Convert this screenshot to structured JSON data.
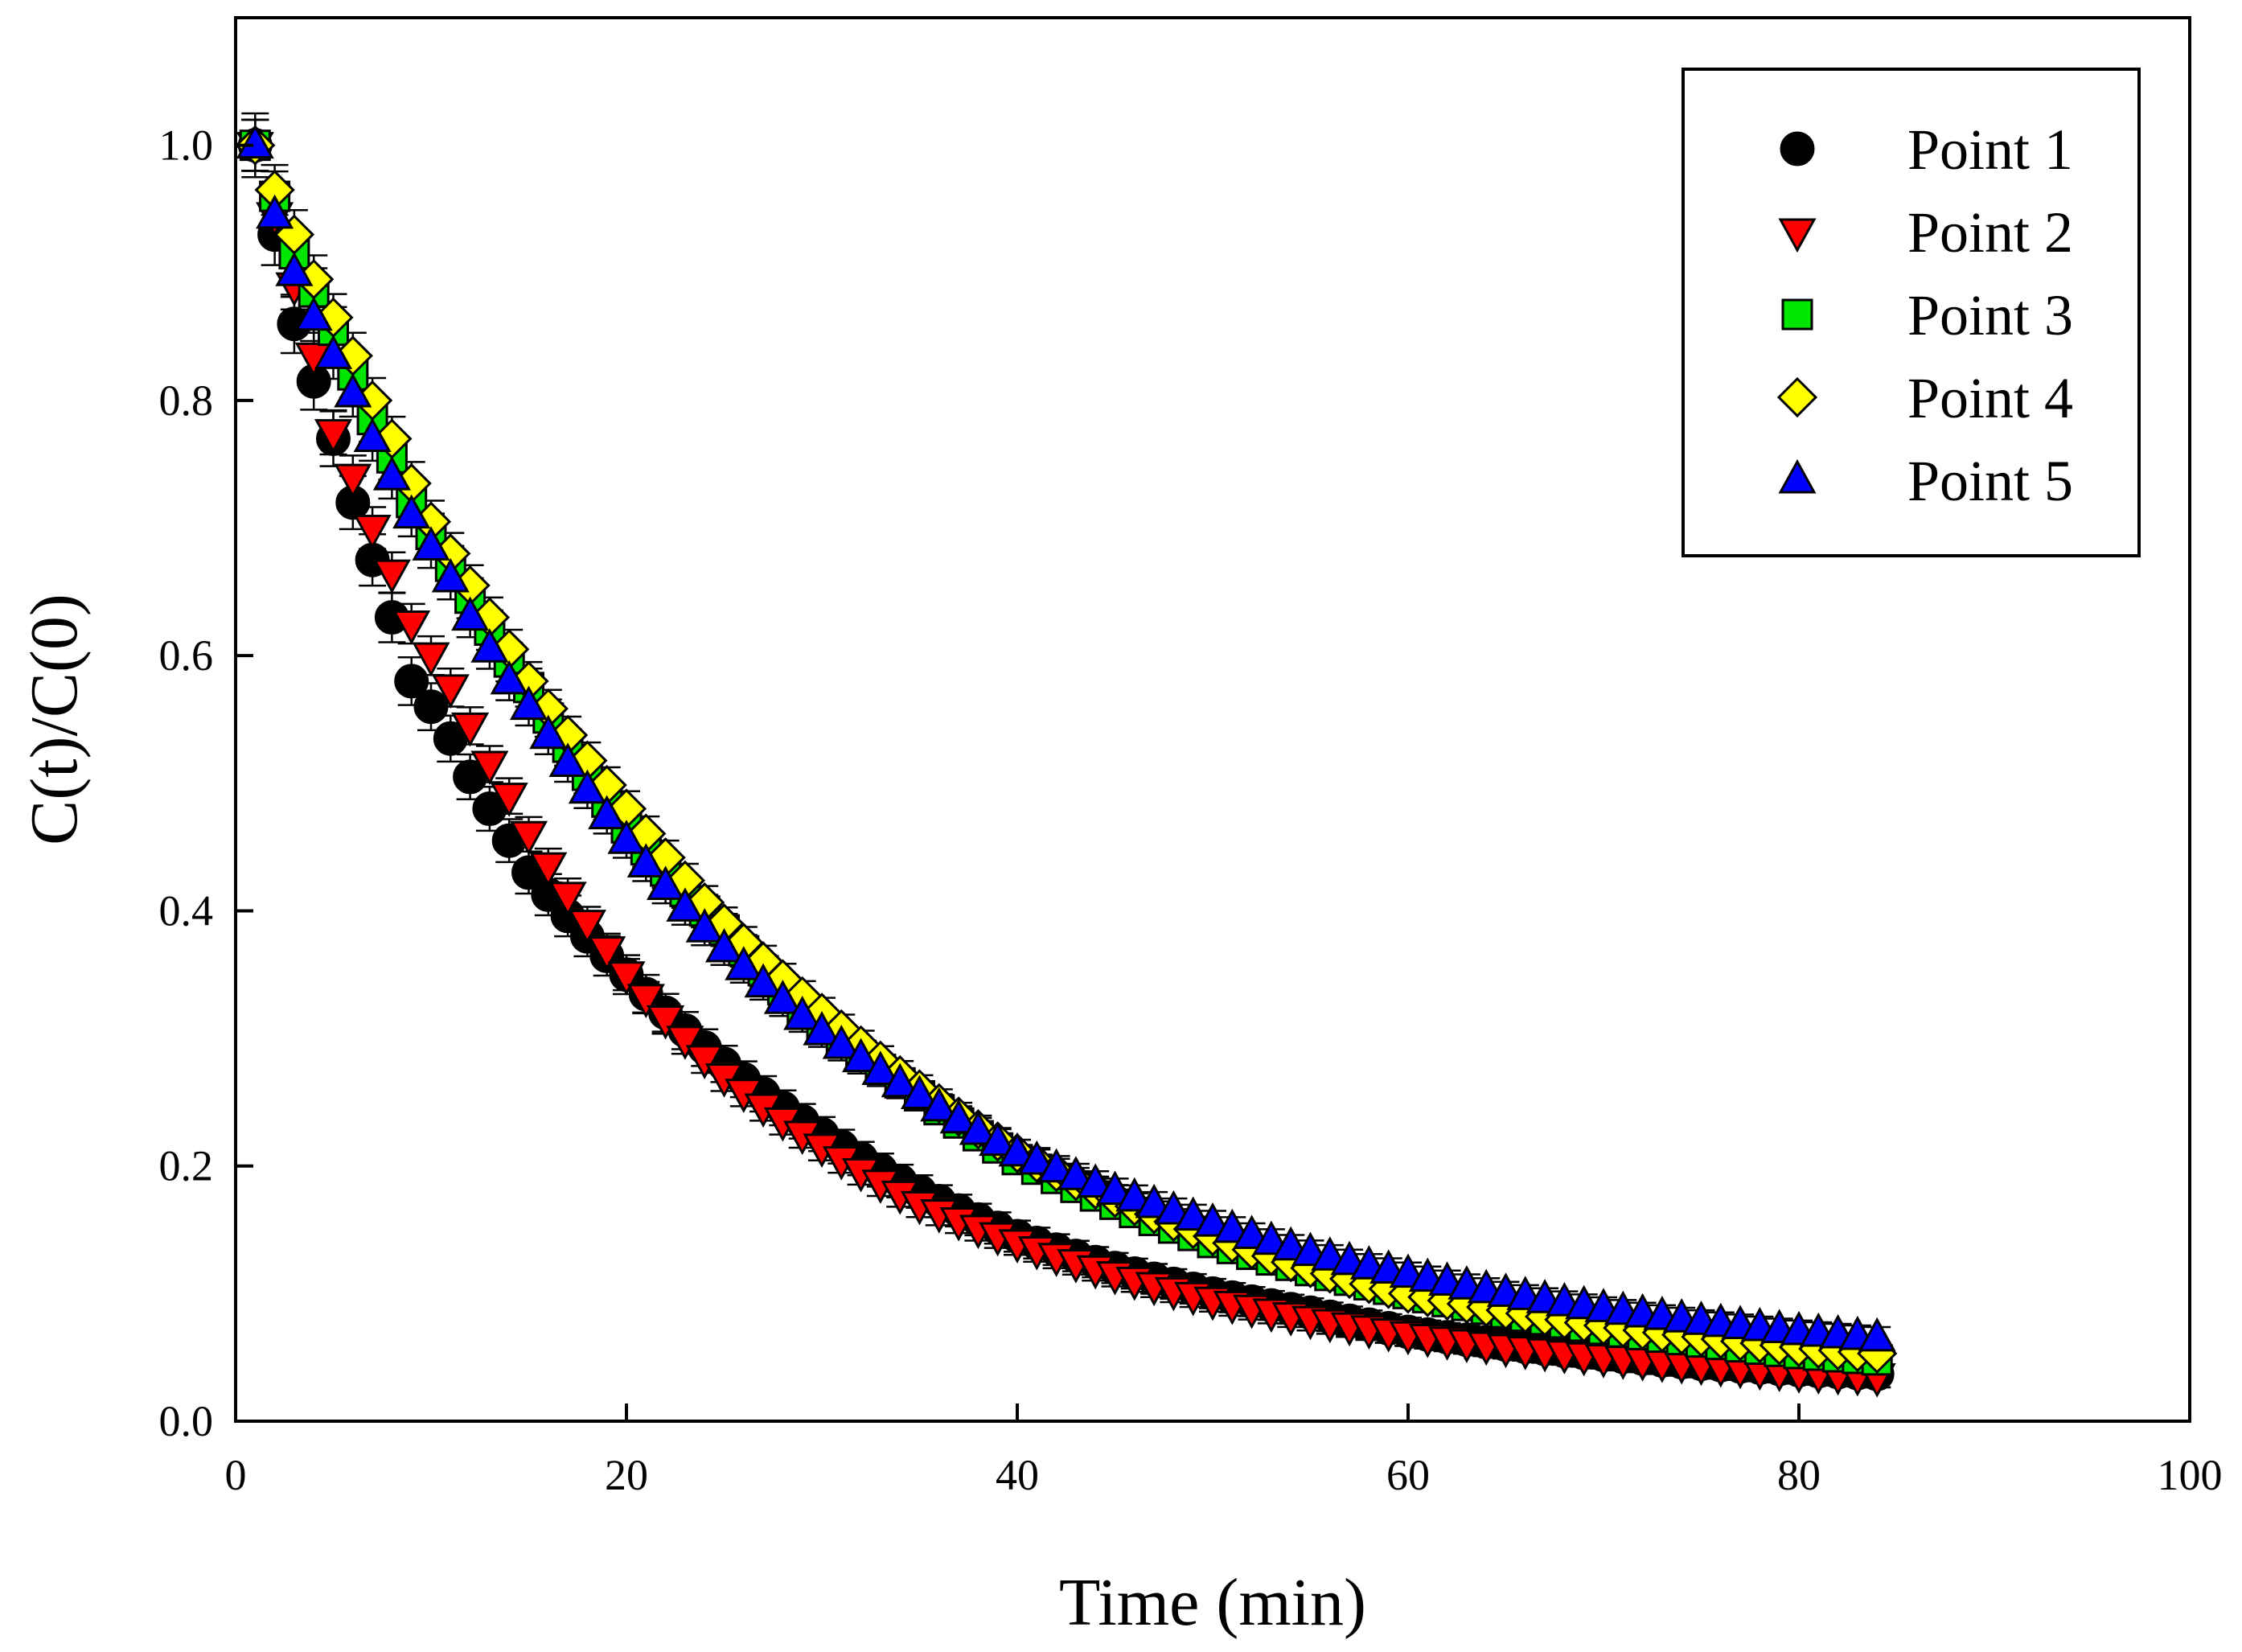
{
  "chart_data": {
    "type": "scatter",
    "title": "",
    "xlabel": "Time (min)",
    "ylabel": "C(t)/C(0)",
    "xlim": [
      0,
      100
    ],
    "ylim": [
      0,
      1.1
    ],
    "xticks": [
      0,
      20,
      40,
      60,
      80,
      100
    ],
    "yticks": [
      0.0,
      0.2,
      0.4,
      0.6,
      0.8,
      1.0
    ],
    "xtick_labels": [
      "0",
      "20",
      "40",
      "60",
      "80",
      "100"
    ],
    "ytick_labels": [
      "0.0",
      "0.2",
      "0.4",
      "0.6",
      "0.8",
      "1.0"
    ],
    "grid": false,
    "legend_position": "top-right",
    "x_start": 1,
    "x_step": 1,
    "x_count": 84,
    "series": [
      {
        "name": "Point 1",
        "marker": "circle",
        "color": "#000000",
        "error_bar": 0.025,
        "y_at": {
          "1": 1.0,
          "2": 0.93,
          "3": 0.86,
          "4": 0.815,
          "5": 0.77,
          "6": 0.72,
          "7": 0.675,
          "8": 0.63,
          "9": 0.58,
          "10": 0.56,
          "11": 0.535,
          "12": 0.505,
          "13": 0.48,
          "14": 0.455,
          "15": 0.43,
          "20": 0.35,
          "25": 0.28,
          "30": 0.225,
          "35": 0.18,
          "40": 0.145,
          "45": 0.12,
          "50": 0.1,
          "55": 0.085,
          "60": 0.07,
          "65": 0.06,
          "70": 0.052,
          "75": 0.045,
          "80": 0.04,
          "84": 0.037
        }
      },
      {
        "name": "Point 2",
        "marker": "triangle-down",
        "color": "#ff0000",
        "error_bar": 0.02,
        "y_at": {
          "1": 1.0,
          "2": 0.945,
          "3": 0.89,
          "4": 0.835,
          "5": 0.775,
          "6": 0.74,
          "7": 0.7,
          "8": 0.665,
          "9": 0.625,
          "10": 0.6,
          "11": 0.575,
          "12": 0.545,
          "13": 0.515,
          "14": 0.49,
          "15": 0.46,
          "20": 0.35,
          "25": 0.27,
          "30": 0.215,
          "35": 0.17,
          "40": 0.14,
          "45": 0.115,
          "50": 0.095,
          "55": 0.08,
          "60": 0.068,
          "65": 0.058,
          "70": 0.05,
          "75": 0.044,
          "80": 0.038,
          "84": 0.035
        }
      },
      {
        "name": "Point 3",
        "marker": "square",
        "color": "#00e600",
        "error_bar": 0.02,
        "y_at": {
          "1": 1.0,
          "2": 0.96,
          "3": 0.915,
          "4": 0.885,
          "5": 0.855,
          "6": 0.82,
          "7": 0.785,
          "8": 0.755,
          "9": 0.72,
          "10": 0.695,
          "11": 0.67,
          "12": 0.645,
          "13": 0.62,
          "14": 0.595,
          "15": 0.575,
          "20": 0.465,
          "25": 0.385,
          "30": 0.31,
          "35": 0.255,
          "40": 0.205,
          "45": 0.17,
          "50": 0.14,
          "55": 0.118,
          "60": 0.1,
          "65": 0.085,
          "70": 0.072,
          "75": 0.062,
          "80": 0.053,
          "84": 0.048
        }
      },
      {
        "name": "Point 4",
        "marker": "diamond",
        "color": "#ffff00",
        "error_bar": 0.02,
        "y_at": {
          "1": 1.0,
          "2": 0.965,
          "3": 0.93,
          "4": 0.895,
          "5": 0.865,
          "6": 0.835,
          "7": 0.8,
          "8": 0.77,
          "9": 0.735,
          "10": 0.705,
          "11": 0.68,
          "12": 0.655,
          "13": 0.63,
          "14": 0.605,
          "15": 0.58,
          "20": 0.48,
          "25": 0.39,
          "30": 0.32,
          "35": 0.26,
          "40": 0.21,
          "45": 0.175,
          "50": 0.145,
          "55": 0.12,
          "60": 0.1,
          "65": 0.087,
          "70": 0.075,
          "75": 0.066,
          "80": 0.058,
          "84": 0.053
        }
      },
      {
        "name": "Point 5",
        "marker": "triangle-up",
        "color": "#0000ff",
        "error_bar": 0.02,
        "y_at": {
          "1": 1.0,
          "2": 0.945,
          "3": 0.9,
          "4": 0.865,
          "5": 0.835,
          "6": 0.805,
          "7": 0.77,
          "8": 0.74,
          "9": 0.71,
          "10": 0.685,
          "11": 0.66,
          "12": 0.63,
          "13": 0.605,
          "14": 0.58,
          "15": 0.56,
          "20": 0.455,
          "25": 0.37,
          "30": 0.305,
          "35": 0.255,
          "40": 0.21,
          "45": 0.18,
          "50": 0.155,
          "55": 0.132,
          "60": 0.115,
          "65": 0.1,
          "70": 0.088,
          "75": 0.078,
          "80": 0.07,
          "84": 0.065
        }
      }
    ]
  }
}
